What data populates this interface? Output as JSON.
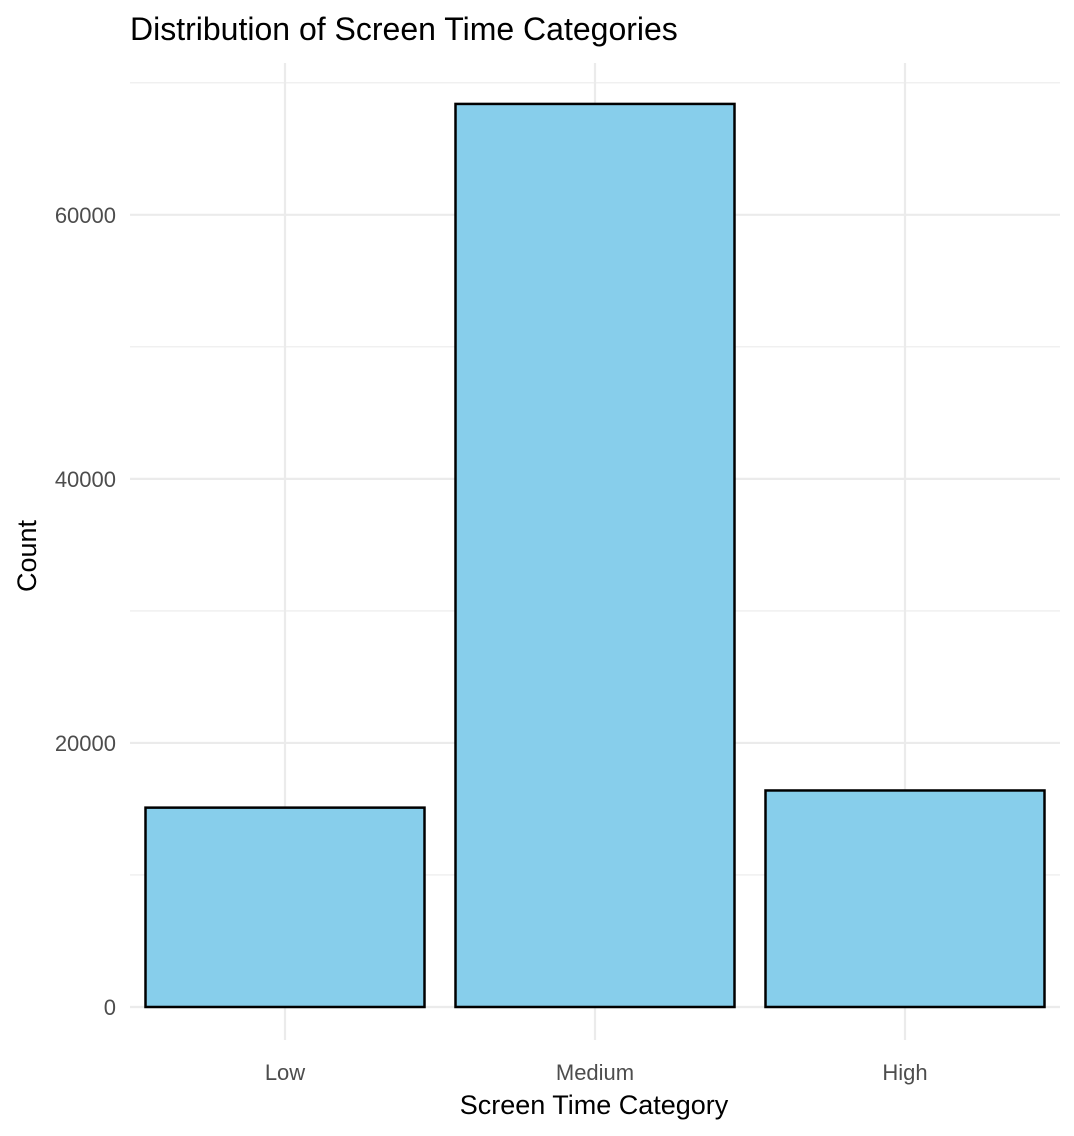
{
  "chart_data": {
    "type": "bar",
    "title": "Distribution of Screen Time Categories",
    "xlabel": "Screen Time Category",
    "ylabel": "Count",
    "categories": [
      "Low",
      "Medium",
      "High"
    ],
    "values": [
      15100,
      68400,
      16400
    ],
    "ylim": [
      -2500,
      71500
    ],
    "yticks": [
      0,
      20000,
      40000,
      60000
    ],
    "ytick_labels": [
      "0",
      "20000",
      "40000",
      "60000"
    ],
    "y_minor_ticks": [
      10000,
      30000,
      50000,
      70000
    ],
    "grid": true,
    "legend": "none",
    "colors": {
      "bar_fill": "#87CEEB",
      "bar_outline": "#000000",
      "grid": "#EBEBEB",
      "tick_text": "#4D4D4D",
      "text": "#000000",
      "background": "#FFFFFF"
    }
  }
}
